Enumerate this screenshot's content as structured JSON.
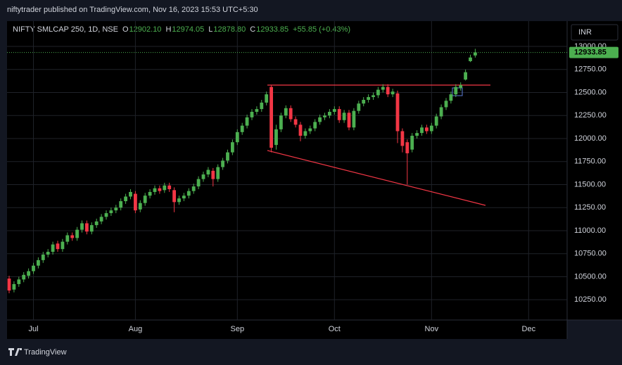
{
  "chart_data": {
    "type": "candlestick",
    "publisher": "niftytrader published on TradingView.com, Nov 16, 2023 15:53 UTC+5:30",
    "symbol": "NIFTY SMLCAP 250, 1D, NSE",
    "ohlc_legend": [
      {
        "label": "O",
        "value": "12902.10"
      },
      {
        "label": "H",
        "value": "12974.05"
      },
      {
        "label": "L",
        "value": "12878.80"
      },
      {
        "label": "C",
        "value": "12933.85"
      }
    ],
    "change": "+55.85 (+0.43%)",
    "currency": "INR",
    "footer": "TradingView",
    "up_color": "#4caf50",
    "down_color": "#f23645",
    "grid": true,
    "categories": [
      null,
      null,
      null,
      null,
      null,
      "Jul",
      null,
      null,
      null,
      null,
      null,
      null,
      null,
      null,
      null,
      null,
      null,
      null,
      null,
      null,
      null,
      null,
      null,
      null,
      null,
      null,
      "Aug",
      null,
      null,
      null,
      null,
      null,
      null,
      null,
      null,
      null,
      null,
      null,
      null,
      null,
      null,
      null,
      null,
      null,
      null,
      null,
      null,
      "Sep",
      null,
      null,
      null,
      null,
      null,
      null,
      null,
      null,
      null,
      null,
      null,
      null,
      null,
      null,
      null,
      null,
      null,
      null,
      null,
      "Oct",
      null,
      null,
      null,
      null,
      null,
      null,
      null,
      null,
      null,
      null,
      null,
      null,
      null,
      null,
      null,
      null,
      null,
      null,
      null,
      "Nov",
      null,
      null,
      null,
      null,
      null,
      null,
      null,
      null,
      null,
      null,
      null,
      null,
      null,
      null,
      null,
      null,
      null,
      null,
      null,
      "Dec",
      null,
      null,
      null,
      null,
      null,
      null,
      null,
      null
    ],
    "open": [
      10480,
      10360,
      10420,
      10470,
      10510,
      10560,
      10620,
      10680,
      10740,
      10770,
      10860,
      10800,
      10880,
      10950,
      10920,
      11010,
      11080,
      10990,
      11060,
      11100,
      11150,
      11190,
      11220,
      11250,
      11320,
      11370,
      11400,
      11230,
      11300,
      11380,
      11420,
      11460,
      11440,
      11490,
      11440,
      11310,
      11350,
      11380,
      11430,
      11480,
      11560,
      11610,
      11650,
      11560,
      11690,
      11760,
      11850,
      11960,
      12070,
      12140,
      12230,
      12290,
      12320,
      12390,
      12560,
      11930,
      12100,
      12250,
      12330,
      12210,
      12150,
      12030,
      12080,
      12110,
      12180,
      12230,
      12250,
      12290,
      12320,
      12200,
      12280,
      12120,
      12300,
      12380,
      12420,
      12450,
      12470,
      12530,
      12560,
      12480,
      12490,
      12080,
      11960,
      11880,
      12030,
      12060,
      12120,
      12080,
      12140,
      12240,
      12340,
      12410,
      12480,
      12550,
      12640,
      12840,
      12902.1,
      null,
      null,
      null,
      null,
      null,
      null,
      null,
      null,
      null,
      null,
      null,
      null,
      null,
      null,
      null,
      null,
      null,
      null,
      null
    ],
    "high": [
      10510,
      10450,
      10500,
      10550,
      10590,
      10650,
      10710,
      10770,
      10800,
      10880,
      10890,
      10910,
      10980,
      10980,
      11040,
      11110,
      11110,
      11090,
      11130,
      11180,
      11220,
      11250,
      11280,
      11350,
      11400,
      11450,
      11430,
      11330,
      11410,
      11450,
      11490,
      11490,
      11520,
      11520,
      11470,
      11380,
      11410,
      11460,
      11510,
      11590,
      11640,
      11690,
      11680,
      11720,
      11790,
      11880,
      11990,
      12100,
      12170,
      12260,
      12320,
      12350,
      12420,
      12510,
      12580,
      12150,
      12280,
      12360,
      12360,
      12240,
      12180,
      12110,
      12140,
      12210,
      12260,
      12280,
      12320,
      12350,
      12350,
      12310,
      12310,
      12330,
      12410,
      12450,
      12480,
      12500,
      12560,
      12590,
      12590,
      12540,
      12520,
      12110,
      11990,
      12060,
      12090,
      12150,
      12150,
      12170,
      12270,
      12370,
      12440,
      12510,
      12590,
      12610,
      12750,
      12910,
      12974.05,
      null,
      null,
      null,
      null,
      null,
      null,
      null,
      null,
      null,
      null,
      null,
      null,
      null,
      null,
      null,
      null,
      null,
      null,
      null
    ],
    "low": [
      10320,
      10330,
      10390,
      10440,
      10480,
      10530,
      10590,
      10650,
      10710,
      10740,
      10770,
      10770,
      10850,
      10890,
      10890,
      10980,
      10960,
      10960,
      11030,
      11070,
      11120,
      11160,
      11190,
      11220,
      11290,
      11340,
      11190,
      11200,
      11270,
      11350,
      11390,
      11400,
      11410,
      11420,
      11200,
      11280,
      11320,
      11350,
      11400,
      11450,
      11530,
      11580,
      11480,
      11530,
      11660,
      11730,
      11820,
      11930,
      12040,
      12110,
      12200,
      12260,
      12290,
      12360,
      11850,
      11880,
      12070,
      12220,
      12180,
      12120,
      11970,
      12000,
      12050,
      12080,
      12150,
      12200,
      12220,
      12260,
      12170,
      12170,
      12090,
      12090,
      12270,
      12350,
      12390,
      12420,
      12440,
      12500,
      12450,
      12450,
      11950,
      11850,
      11500,
      11850,
      12000,
      12030,
      12050,
      12050,
      12110,
      12210,
      12310,
      12380,
      12450,
      12520,
      12630,
      12830,
      12878.8,
      null,
      null,
      null,
      null,
      null,
      null,
      null,
      null,
      null,
      null,
      null,
      null,
      null,
      null,
      null,
      null,
      null,
      null,
      null
    ],
    "close": [
      10350,
      10420,
      10470,
      10520,
      10560,
      10620,
      10680,
      10740,
      10770,
      10850,
      10800,
      10880,
      10950,
      10920,
      11010,
      11080,
      10990,
      11060,
      11100,
      11150,
      11190,
      11220,
      11250,
      11320,
      11370,
      11420,
      11220,
      11300,
      11380,
      11420,
      11460,
      11430,
      11490,
      11450,
      11310,
      11350,
      11380,
      11430,
      11480,
      11560,
      11610,
      11660,
      11560,
      11690,
      11760,
      11850,
      11960,
      12070,
      12140,
      12230,
      12290,
      12320,
      12390,
      12480,
      11900,
      12100,
      12250,
      12330,
      12210,
      12150,
      12030,
      12080,
      12110,
      12180,
      12230,
      12250,
      12290,
      12320,
      12200,
      12280,
      12120,
      12300,
      12380,
      12420,
      12450,
      12470,
      12530,
      12560,
      12480,
      12510,
      12080,
      11920,
      11840,
      12030,
      12060,
      12120,
      12080,
      12140,
      12240,
      12340,
      12410,
      12480,
      12560,
      12580,
      12720,
      12880,
      12933.85,
      null,
      null,
      null,
      null,
      null,
      null,
      null,
      null,
      null,
      null,
      null,
      null,
      null,
      null,
      null,
      null,
      null,
      null,
      null
    ],
    "last_price": {
      "value": 12933.85,
      "label": "12933.85"
    },
    "ylim": [
      10030,
      13275
    ],
    "yticks": [
      {
        "value": 10250,
        "label": "10250.00"
      },
      {
        "value": 10500,
        "label": "10500.00"
      },
      {
        "value": 10750,
        "label": "10750.00"
      },
      {
        "value": 11000,
        "label": "11000.00"
      },
      {
        "value": 11250,
        "label": "11250.00"
      },
      {
        "value": 11500,
        "label": "11500.00"
      },
      {
        "value": 11750,
        "label": "11750.00"
      },
      {
        "value": 12000,
        "label": "12000.00"
      },
      {
        "value": 12250,
        "label": "12250.00"
      },
      {
        "value": 12500,
        "label": "12500.00"
      },
      {
        "value": 12750,
        "label": "12750.00"
      },
      {
        "value": 13000,
        "label": "13000.00"
      }
    ]
  }
}
